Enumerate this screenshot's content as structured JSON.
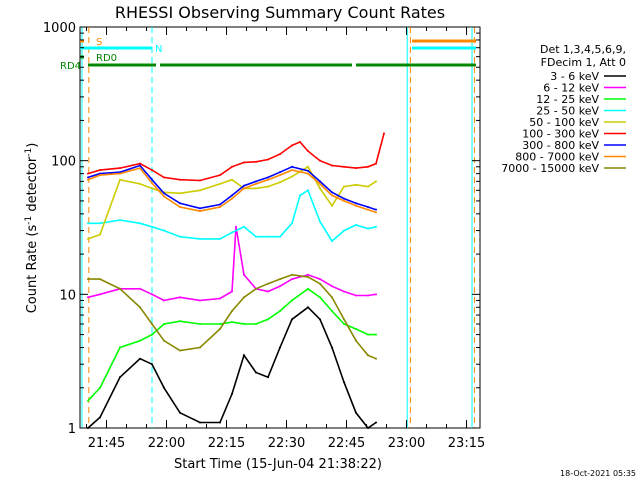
{
  "chart_data": {
    "type": "line",
    "title": "RHESSI Observing Summary Count Rates",
    "xlabel": "Start Time (15-Jun-04 21:38:22)",
    "ylabel": "Count Rate (s",
    "ylabel_sup1": "-1",
    "ylabel_mid": " detector",
    "ylabel_sup2": "-1",
    "ylabel_end": ")",
    "y_scale": "log",
    "ylim": [
      1,
      1000
    ],
    "xlim_minutes": [
      0,
      100
    ],
    "x_tick_labels": [
      "21:45",
      "22:00",
      "22:15",
      "22:30",
      "22:45",
      "23:00",
      "23:15"
    ],
    "x_tick_minutes": [
      6.63,
      21.63,
      36.63,
      51.63,
      66.63,
      81.63,
      96.63
    ],
    "y_tick_labels": [
      "1",
      "10",
      "100",
      "1000"
    ],
    "y_tick_values": [
      1,
      10,
      100,
      1000
    ],
    "timestamp": "18-Oct-2021 05:35",
    "legend_header": [
      "Det 1,3,4,5,6,9,",
      "FDecim 1, Att 0"
    ],
    "series": [
      {
        "name": "3 - 6 keV",
        "color": "#000000",
        "x": [
          2,
          5,
          10,
          15,
          18,
          21,
          25,
          30,
          35,
          38,
          41,
          44,
          47,
          50,
          53,
          57,
          60,
          63,
          66,
          69,
          72,
          74
        ],
        "values": [
          1.0,
          1.2,
          2.4,
          3.3,
          3.0,
          2.0,
          1.3,
          1.1,
          1.1,
          1.8,
          3.5,
          2.6,
          2.4,
          4.0,
          6.5,
          8.0,
          6.5,
          4.0,
          2.2,
          1.3,
          1.0,
          1.1
        ]
      },
      {
        "name": "6 - 12 keV",
        "color": "#ff00ff",
        "x": [
          2,
          5,
          10,
          15,
          18,
          21,
          25,
          30,
          35,
          38,
          39,
          41,
          44,
          47,
          50,
          53,
          57,
          60,
          63,
          66,
          69,
          72,
          74
        ],
        "values": [
          9.5,
          10,
          11,
          11,
          10,
          9.0,
          9.5,
          9.0,
          9.3,
          10.5,
          32,
          14,
          11,
          10.5,
          11.5,
          13,
          14,
          13,
          11.5,
          10.5,
          9.8,
          9.8,
          10
        ]
      },
      {
        "name": "12 - 25 keV",
        "color": "#00ff00",
        "x": [
          2,
          5,
          10,
          15,
          18,
          21,
          25,
          30,
          35,
          38,
          41,
          44,
          47,
          50,
          53,
          57,
          60,
          63,
          66,
          69,
          72,
          74
        ],
        "values": [
          1.6,
          2.0,
          4.0,
          4.5,
          5.0,
          6.0,
          6.3,
          6.0,
          6.0,
          6.2,
          6.0,
          6.0,
          6.5,
          7.5,
          9.0,
          11,
          9.5,
          7.5,
          6.0,
          5.5,
          5.0,
          5.0
        ]
      },
      {
        "name": "25 - 50 keV",
        "color": "#00ffff",
        "x": [
          2,
          5,
          10,
          15,
          18,
          21,
          25,
          30,
          35,
          38,
          41,
          44,
          47,
          50,
          53,
          55,
          57,
          60,
          63,
          66,
          69,
          72,
          74
        ],
        "values": [
          34,
          34,
          36,
          34,
          32,
          30,
          27,
          26,
          26,
          29,
          32,
          27,
          27,
          27,
          34,
          55,
          60,
          35,
          25,
          30,
          33,
          31,
          32
        ]
      },
      {
        "name": "50 - 100 keV",
        "color": "#cccc00",
        "x": [
          2,
          5,
          10,
          15,
          18,
          21,
          25,
          30,
          35,
          38,
          41,
          44,
          47,
          50,
          53,
          57,
          60,
          63,
          66,
          69,
          72,
          74
        ],
        "values": [
          26,
          28,
          72,
          67,
          62,
          58,
          57,
          60,
          67,
          72,
          62,
          62,
          64,
          69,
          76,
          90,
          62,
          46,
          64,
          66,
          64,
          70
        ]
      },
      {
        "name": "100 - 300 keV",
        "color": "#ff0000",
        "x": [
          2,
          5,
          10,
          15,
          18,
          21,
          25,
          30,
          35,
          38,
          41,
          44,
          47,
          50,
          53,
          55,
          57,
          60,
          63,
          66,
          69,
          72,
          74,
          76
        ],
        "values": [
          80,
          85,
          88,
          95,
          85,
          75,
          72,
          71,
          78,
          90,
          97,
          98,
          102,
          112,
          130,
          138,
          118,
          100,
          92,
          90,
          88,
          90,
          95,
          160
        ]
      },
      {
        "name": "300 - 800 keV",
        "color": "#0000ff",
        "x": [
          2,
          5,
          10,
          15,
          18,
          21,
          25,
          30,
          35,
          38,
          41,
          44,
          47,
          50,
          53,
          57,
          60,
          63,
          66,
          69,
          72,
          74
        ],
        "values": [
          75,
          80,
          82,
          92,
          72,
          57,
          48,
          44,
          47,
          55,
          65,
          70,
          75,
          82,
          90,
          84,
          70,
          58,
          52,
          48,
          45,
          43
        ]
      },
      {
        "name": "800 - 7000 keV",
        "color": "#ff8800",
        "x": [
          2,
          5,
          10,
          15,
          18,
          21,
          25,
          30,
          35,
          38,
          41,
          44,
          47,
          50,
          53,
          57,
          60,
          63,
          66,
          69,
          72,
          74
        ],
        "values": [
          72,
          78,
          80,
          88,
          68,
          54,
          45,
          42,
          45,
          52,
          62,
          67,
          72,
          78,
          85,
          80,
          67,
          55,
          50,
          46,
          43,
          41
        ]
      },
      {
        "name": "7000 - 15000 keV",
        "color": "#888800",
        "x": [
          2,
          5,
          10,
          15,
          18,
          21,
          25,
          30,
          35,
          38,
          41,
          44,
          47,
          50,
          53,
          57,
          60,
          63,
          66,
          69,
          72,
          74
        ],
        "values": [
          13,
          13,
          11,
          8.0,
          6.0,
          4.5,
          3.8,
          4.0,
          5.5,
          7.5,
          9.5,
          11,
          12,
          13,
          14,
          13.5,
          12,
          9.5,
          6.5,
          4.5,
          3.5,
          3.3
        ]
      }
    ],
    "flag_bars": [
      {
        "label": "S",
        "color": "#ff8800",
        "segments": [
          [
            0,
            1
          ],
          [
            83,
            99
          ]
        ]
      },
      {
        "label": "N",
        "color": "#00ffff",
        "segments": [
          [
            0,
            18
          ],
          [
            83,
            99
          ]
        ]
      },
      {
        "label": "RD0",
        "color": "#008800",
        "segments": [
          [
            0,
            1
          ]
        ]
      },
      {
        "label": "RD4",
        "color": "#008800",
        "segments": [
          [
            2,
            19
          ],
          [
            20,
            45
          ],
          [
            45,
            68
          ],
          [
            69,
            99
          ]
        ]
      }
    ],
    "vertical_markers": [
      {
        "x": 0.5,
        "color": "#00ffff",
        "style": "solid"
      },
      {
        "x": 2.2,
        "color": "#ff8800",
        "style": "dashed"
      },
      {
        "x": 18.0,
        "color": "#00ffff",
        "style": "dashed"
      },
      {
        "x": 81.8,
        "color": "#00ffff",
        "style": "solid"
      },
      {
        "x": 82.6,
        "color": "#ff8800",
        "style": "dashed"
      },
      {
        "x": 98.0,
        "color": "#00ffff",
        "style": "solid"
      },
      {
        "x": 98.6,
        "color": "#ff8800",
        "style": "dashed"
      }
    ]
  }
}
